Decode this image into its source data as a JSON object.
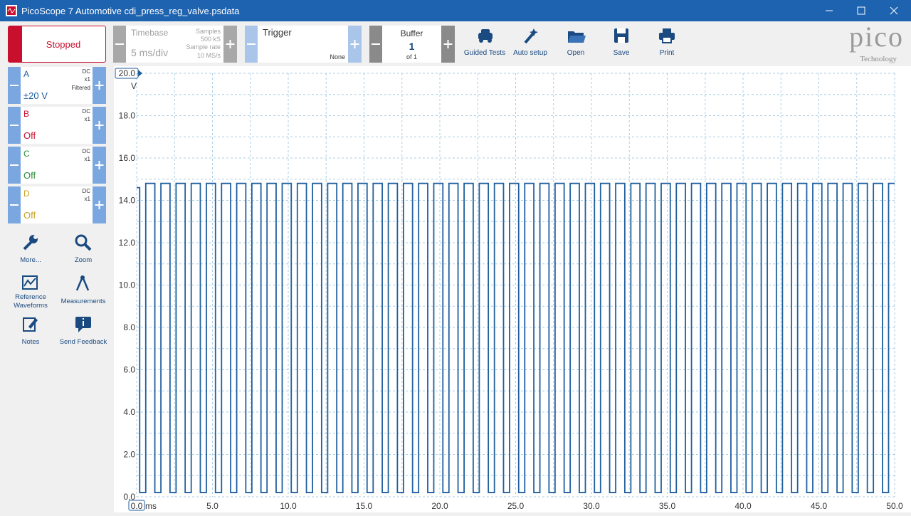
{
  "window": {
    "title": "PicoScope 7 Automotive cdi_press_reg_valve.psdata"
  },
  "toolbar": {
    "status": "Stopped",
    "timebase": {
      "label": "Timebase",
      "value": "5 ms/div",
      "samples_label": "Samples",
      "samples": "500 kS",
      "rate_label": "Sample rate",
      "rate": "10 MS/s"
    },
    "trigger": {
      "label": "Trigger",
      "mode": "None"
    },
    "buffer": {
      "label": "Buffer",
      "index": "1",
      "of": "of 1"
    },
    "actions": [
      "Guided Tests",
      "Auto setup",
      "Open",
      "Save",
      "Print"
    ],
    "logo": {
      "name": "pico",
      "tagline": "Technology"
    }
  },
  "channels": [
    {
      "name": "A",
      "coupling": "DC",
      "probe": "x1",
      "filter": "Filtered",
      "range": "±20 V",
      "color": "#1f5d9b"
    },
    {
      "name": "B",
      "coupling": "DC",
      "probe": "x1",
      "range": "Off",
      "color": "#c8102e"
    },
    {
      "name": "C",
      "coupling": "DC",
      "probe": "x1",
      "range": "Off",
      "color": "#2e8b3a"
    },
    {
      "name": "D",
      "coupling": "DC",
      "probe": "x1",
      "range": "Off",
      "color": "#c9a227"
    }
  ],
  "tools": [
    "More...",
    "Zoom",
    "Reference Waveforms",
    "Measurements",
    "Notes",
    "Send Feedback"
  ],
  "chart_data": {
    "type": "line",
    "step": true,
    "x_unit": "ms",
    "y_unit": "V",
    "grid": true,
    "xlim": [
      0,
      50
    ],
    "ylim": [
      0,
      20
    ],
    "xticks": [
      {
        "value": 0,
        "label": "0.0"
      },
      {
        "value": 5,
        "label": "5.0"
      },
      {
        "value": 10,
        "label": "10.0"
      },
      {
        "value": 15,
        "label": "15.0"
      },
      {
        "value": 20,
        "label": "20.0"
      },
      {
        "value": 25,
        "label": "25.0"
      },
      {
        "value": 30,
        "label": "30.0"
      },
      {
        "value": 35,
        "label": "35.0"
      },
      {
        "value": 40,
        "label": "40.0"
      },
      {
        "value": 45,
        "label": "45.0"
      },
      {
        "value": 50,
        "label": "50.0"
      }
    ],
    "yticks": [
      {
        "value": 0,
        "label": "0.0"
      },
      {
        "value": 2,
        "label": "2.0"
      },
      {
        "value": 4,
        "label": "4.0"
      },
      {
        "value": 6,
        "label": "6.0"
      },
      {
        "value": 8,
        "label": "8.0"
      },
      {
        "value": 10,
        "label": "10.0"
      },
      {
        "value": 12,
        "label": "12.0"
      },
      {
        "value": 14,
        "label": "14.0"
      },
      {
        "value": 16,
        "label": "16.0"
      },
      {
        "value": 18,
        "label": "18.0"
      },
      {
        "value": 20,
        "label": "20.0"
      }
    ],
    "series": [
      {
        "name": "A",
        "color": "#1f5f9f",
        "x": [
          0,
          0.2,
          0.6,
          1.2,
          1.6,
          2.2,
          2.6,
          3.2,
          3.6,
          4.2,
          4.6,
          5.2,
          5.6,
          6.2,
          6.6,
          7.2,
          7.6,
          8.2,
          8.6,
          9.2,
          9.6,
          10.2,
          10.6,
          11.2,
          11.6,
          12.2,
          12.6,
          13.2,
          13.6,
          14.2,
          14.6,
          15.2,
          15.6,
          16.2,
          16.6,
          17.2,
          17.6,
          18.2,
          18.6,
          19.2,
          19.6,
          20.2,
          20.6,
          21.2,
          21.6,
          22.2,
          22.6,
          23.2,
          23.6,
          24.2,
          24.6,
          25.2,
          25.6,
          26.2,
          26.6,
          27.2,
          27.6,
          28.2,
          28.6,
          29.2,
          29.6,
          30.2,
          30.6,
          31.2,
          31.6,
          32.2,
          32.6,
          33.2,
          33.6,
          34.2,
          34.6,
          35.2,
          35.6,
          36.2,
          36.6,
          37.2,
          37.6,
          38.2,
          38.6,
          39.2,
          39.6,
          40.2,
          40.6,
          41.2,
          41.6,
          42.2,
          42.6,
          43.2,
          43.6,
          44.2,
          44.6,
          45.2,
          45.6,
          46.2,
          46.6,
          47.2,
          47.6,
          48.2,
          48.6,
          49.2,
          49.6,
          50
        ],
        "values": [
          14.6,
          0.2,
          14.8,
          0.2,
          14.8,
          0.2,
          14.8,
          0.2,
          14.8,
          0.2,
          14.8,
          0.2,
          14.8,
          0.2,
          14.8,
          0.2,
          14.8,
          0.2,
          14.8,
          0.2,
          14.8,
          0.2,
          14.8,
          0.2,
          14.8,
          0.2,
          14.8,
          0.2,
          14.8,
          0.2,
          14.8,
          0.2,
          14.8,
          0.2,
          14.8,
          0.2,
          14.8,
          0.2,
          14.8,
          0.2,
          14.8,
          0.2,
          14.8,
          0.2,
          14.8,
          0.2,
          14.8,
          0.2,
          14.8,
          0.2,
          14.8,
          0.2,
          14.8,
          0.2,
          14.8,
          0.2,
          14.8,
          0.2,
          14.8,
          0.2,
          14.8,
          0.2,
          14.8,
          0.2,
          14.8,
          0.2,
          14.8,
          0.2,
          14.8,
          0.2,
          14.8,
          0.2,
          14.8,
          0.2,
          14.8,
          0.2,
          14.8,
          0.2,
          14.8,
          0.2,
          14.8,
          0.2,
          14.8,
          0.2,
          14.8,
          0.2,
          14.8,
          0.2,
          14.8,
          0.2,
          14.8,
          0.2,
          14.8,
          0.2,
          14.8,
          0.2,
          14.8,
          0.2,
          14.8,
          0.2,
          14.8,
          14.8
        ]
      }
    ]
  }
}
